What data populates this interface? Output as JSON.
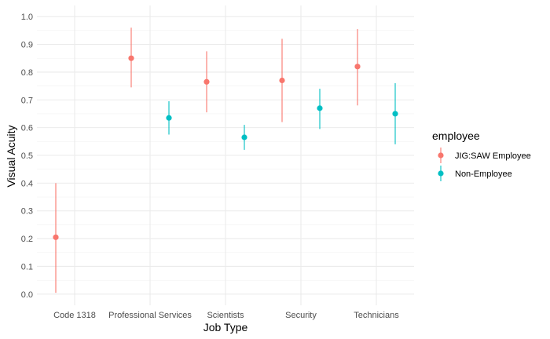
{
  "chart_data": {
    "type": "scatter",
    "subtype": "point-range",
    "xlabel": "Job Type",
    "ylabel": "Visual Acuity",
    "categories": [
      "Code 1318",
      "Professional Services",
      "Scientists",
      "Security",
      "Technicians"
    ],
    "ylim": [
      -0.04,
      1.04
    ],
    "yticks": [
      "0.0",
      "0.1",
      "0.2",
      "0.3",
      "0.4",
      "0.5",
      "0.6",
      "0.7",
      "0.8",
      "0.9",
      "1.0"
    ],
    "grid": true,
    "legend": {
      "title": "employee",
      "placement": "right"
    },
    "series": [
      {
        "name": "JIG:SAW Employee",
        "color": "#F8766D",
        "points": [
          {
            "category": "Code 1318",
            "y": 0.205,
            "ymin": 0.005,
            "ymax": 0.4
          },
          {
            "category": "Professional Services",
            "y": 0.85,
            "ymin": 0.745,
            "ymax": 0.96
          },
          {
            "category": "Scientists",
            "y": 0.765,
            "ymin": 0.655,
            "ymax": 0.875
          },
          {
            "category": "Security",
            "y": 0.77,
            "ymin": 0.62,
            "ymax": 0.92
          },
          {
            "category": "Technicians",
            "y": 0.82,
            "ymin": 0.68,
            "ymax": 0.955
          }
        ]
      },
      {
        "name": "Non-Employee",
        "color": "#00BFC4",
        "points": [
          {
            "category": "Professional Services",
            "y": 0.635,
            "ymin": 0.575,
            "ymax": 0.695
          },
          {
            "category": "Scientists",
            "y": 0.565,
            "ymin": 0.52,
            "ymax": 0.61
          },
          {
            "category": "Security",
            "y": 0.67,
            "ymin": 0.595,
            "ymax": 0.74
          },
          {
            "category": "Technicians",
            "y": 0.65,
            "ymin": 0.54,
            "ymax": 0.76
          }
        ]
      }
    ]
  }
}
